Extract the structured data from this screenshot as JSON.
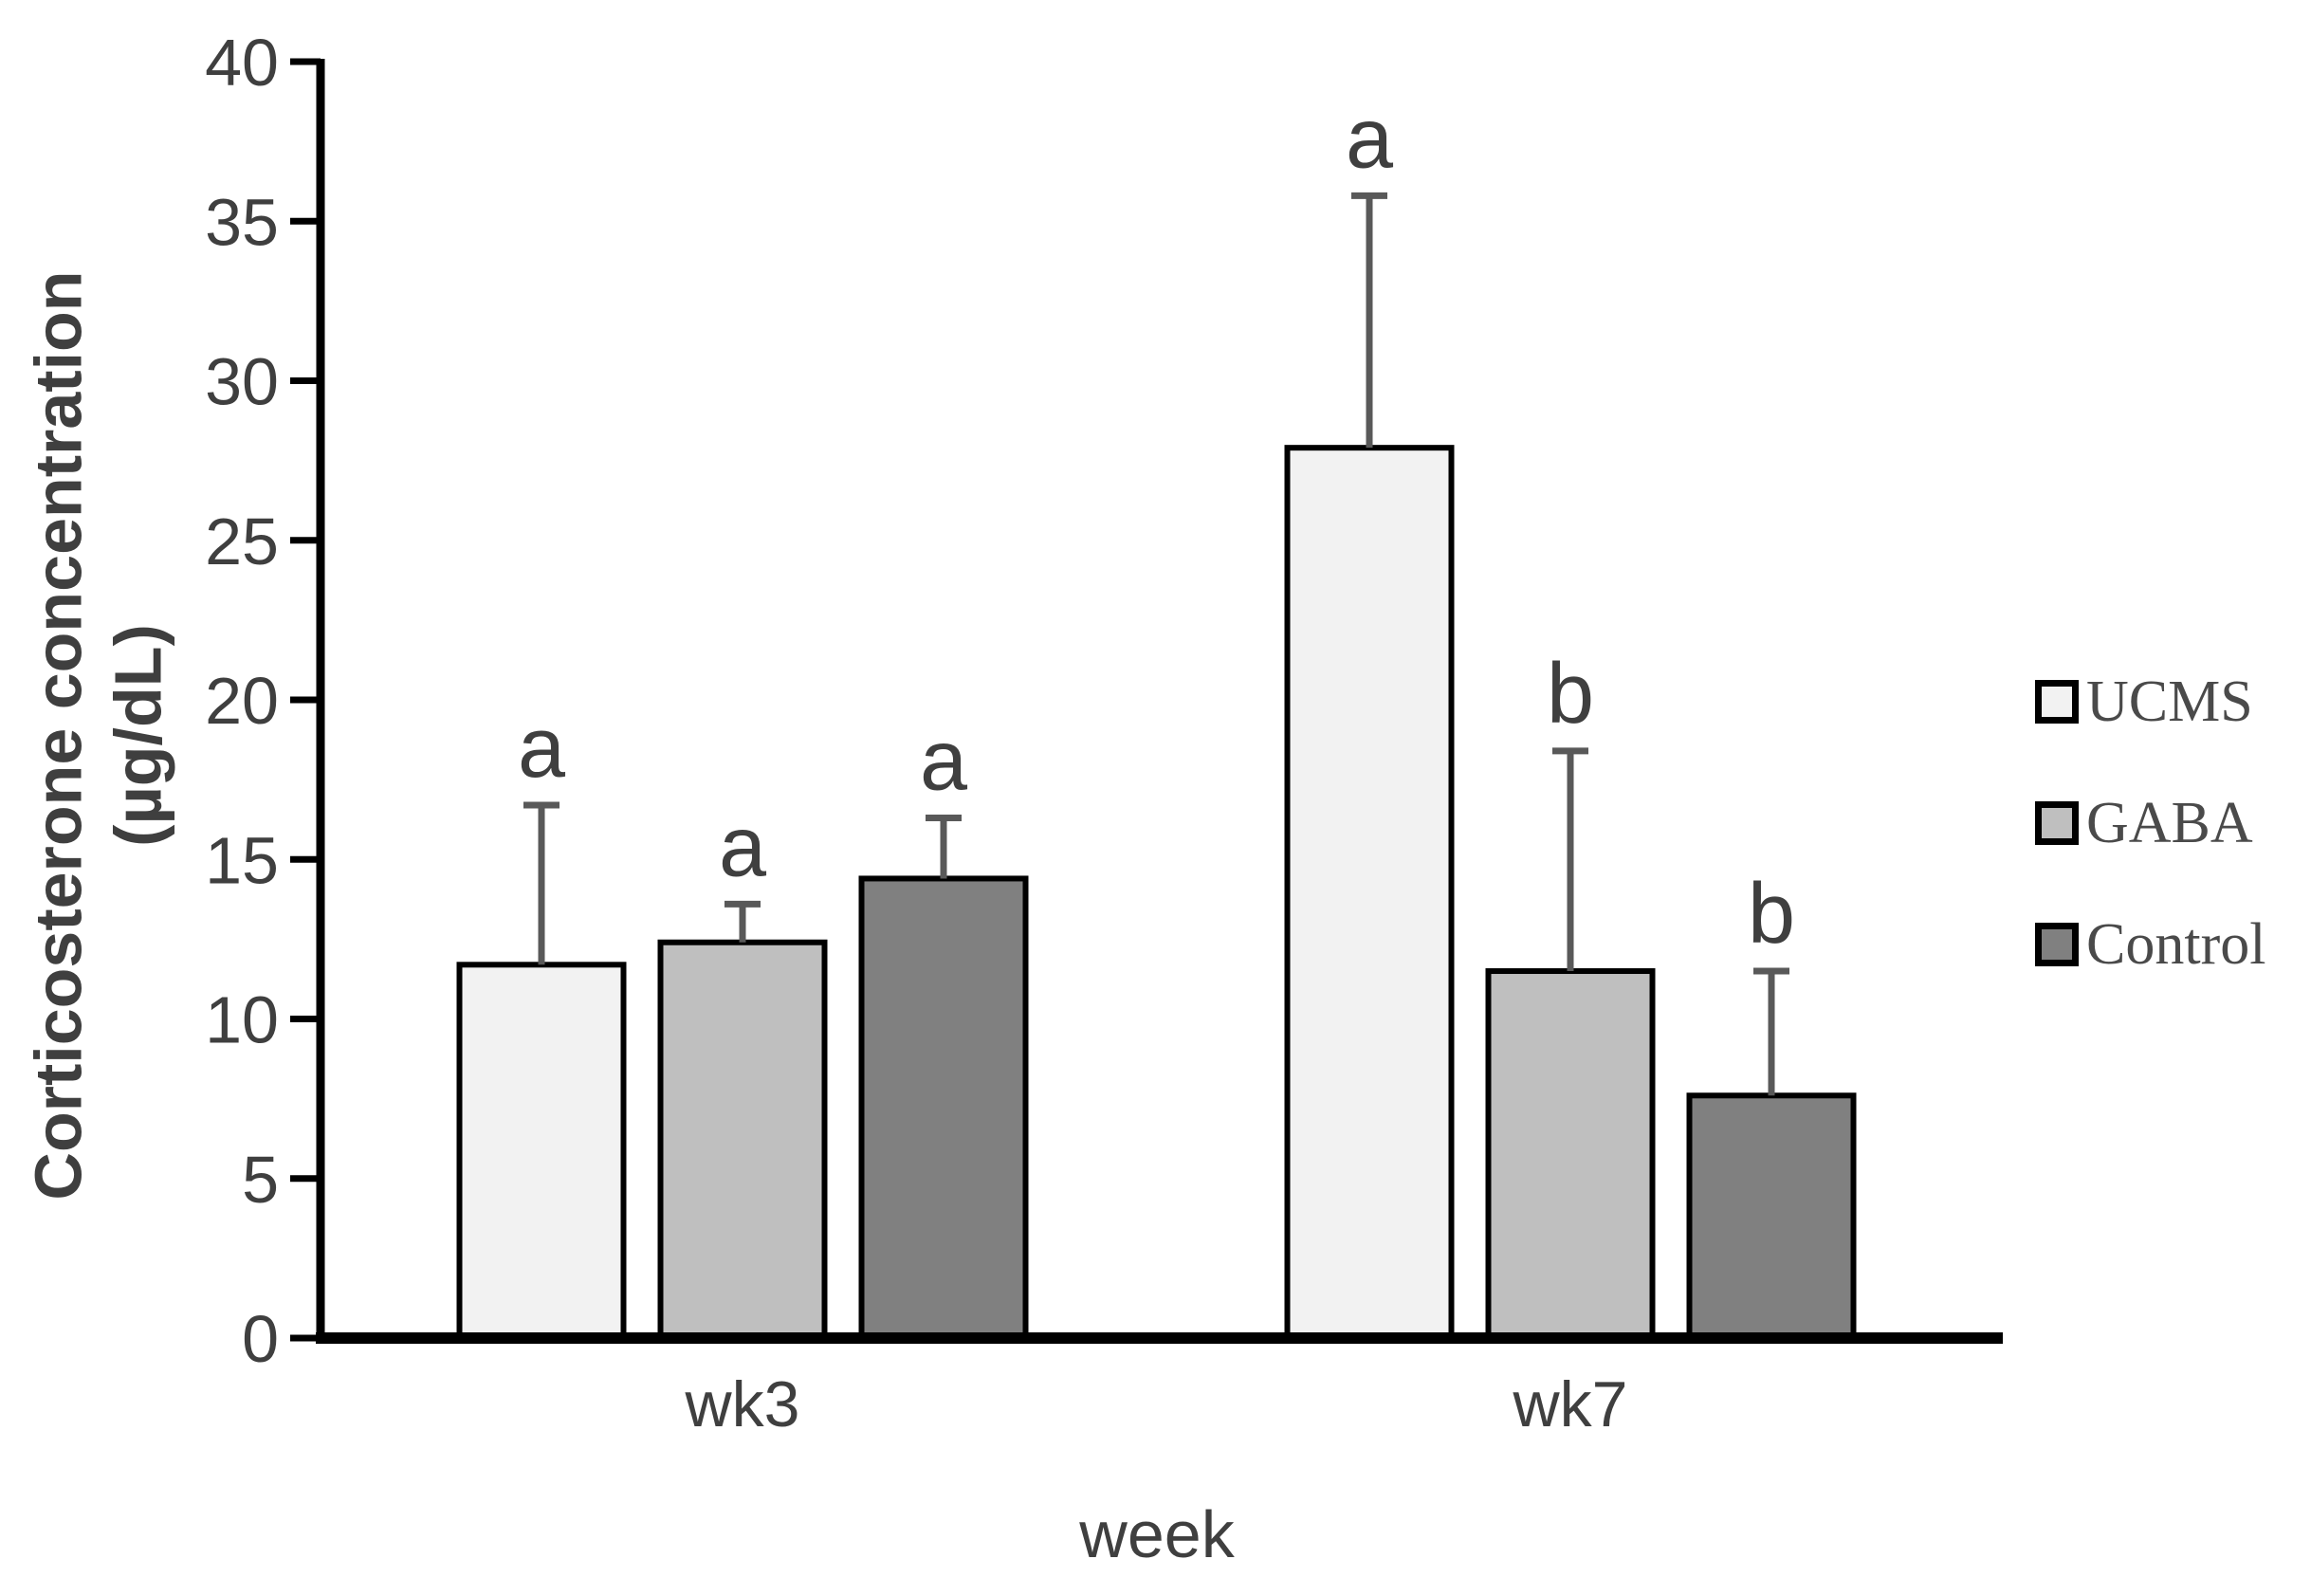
{
  "figure": {
    "background": "#ffffff"
  },
  "chart_data": {
    "type": "bar",
    "title": "",
    "xlabel": "week",
    "ylabel": "Corticosterone concentration (µg/dL)",
    "ylabel_line1": "Corticosterone concentration",
    "ylabel_line2": "(µg/dL)",
    "categories": [
      "wk3",
      "wk7"
    ],
    "series": [
      {
        "name": "UCMS",
        "color": "#f2f2f2",
        "values": [
          11.7,
          27.9
        ],
        "errors_plus": [
          5.0,
          7.9
        ]
      },
      {
        "name": "GABA",
        "color": "#bfbfbf",
        "values": [
          12.4,
          11.5
        ],
        "errors_plus": [
          1.2,
          6.9
        ]
      },
      {
        "name": "Control",
        "color": "#808080",
        "values": [
          14.4,
          7.6
        ],
        "errors_plus": [
          1.9,
          3.9
        ]
      }
    ],
    "sig_letters": [
      [
        "a",
        "a",
        "a"
      ],
      [
        "a",
        "b",
        "b"
      ]
    ],
    "ylim": [
      0,
      40
    ],
    "yticks": [
      0,
      5,
      10,
      15,
      20,
      25,
      30,
      35,
      40
    ],
    "grid": false,
    "legend_position": "right",
    "colors": {
      "axis": "#000000",
      "bar_border": "#000000",
      "error_bar": "#595959",
      "text": "#3f3f3f"
    }
  }
}
